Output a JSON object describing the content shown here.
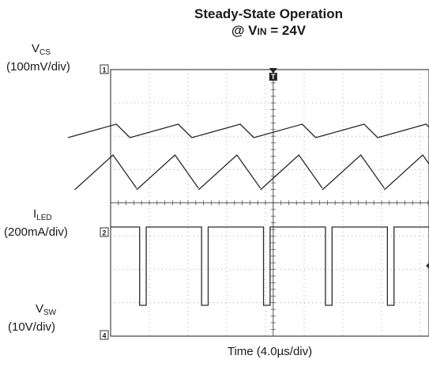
{
  "title": {
    "line1": "Steady-State Operation",
    "line2_prefix": "@ V",
    "line2_sub": "IN",
    "line2_suffix": " = 24V"
  },
  "xlabel": "Time (4.0µs/div)",
  "chart_data": {
    "type": "line",
    "x_unit": "µs",
    "x_per_div": 4.0,
    "grid": true,
    "channels": [
      {
        "name": "V_CS",
        "label_main": "V",
        "label_sub": "CS",
        "scale": "(100mV/div)",
        "marker": "1",
        "color": "#2a2a2a",
        "waveforms": [
          {
            "shape": "sawtooth-up",
            "period_div": 1.6,
            "min_div_offset": 0.0,
            "max_div_offset": 0.25
          },
          {
            "shape": "sawtooth-ramp",
            "period_div": 1.6,
            "min_div_offset": -0.8,
            "max_div_offset": 0.0
          }
        ]
      },
      {
        "name": "I_LED",
        "label_main": "I",
        "label_sub": "LED",
        "scale": "(200mA/div)",
        "marker": "2",
        "color": "#2a2a2a"
      },
      {
        "name": "V_SW",
        "label_main": "V",
        "label_sub": "SW",
        "scale": "(10V/div)",
        "marker": "4",
        "color": "#2a2a2a",
        "waveform": {
          "shape": "pulse",
          "period_div": 1.6,
          "low_duration_div": 0.17,
          "amplitude_div": 2.4
        }
      }
    ],
    "trigger_marker": "T"
  }
}
